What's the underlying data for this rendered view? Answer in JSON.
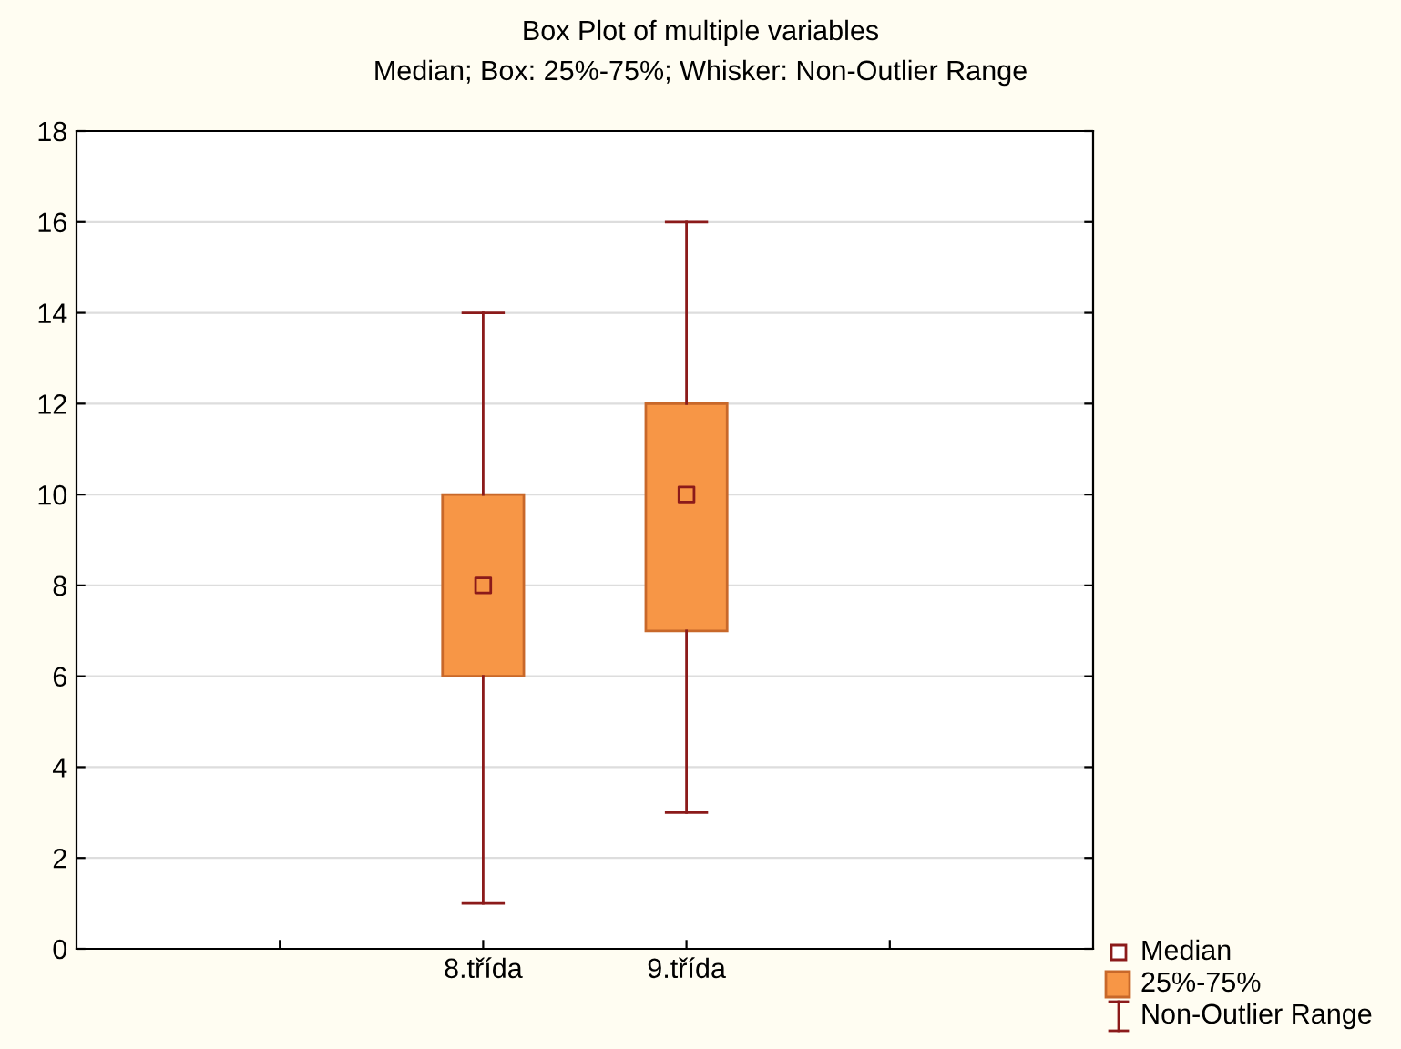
{
  "chart_data": {
    "type": "box",
    "title": "Box Plot of multiple variables",
    "subtitle": "Median; Box: 25%-75%; Whisker: Non-Outlier Range",
    "categories": [
      null,
      "8.třída",
      "9.třída",
      null
    ],
    "boxes": [
      null,
      {
        "low": 1,
        "q1": 6,
        "median": 8,
        "q3": 10,
        "high": 14
      },
      {
        "low": 3,
        "q1": 7,
        "median": 10,
        "q3": 12,
        "high": 16
      },
      null
    ],
    "color": "#f79646",
    "ylim": [
      0,
      18
    ],
    "yticks": [
      0,
      2,
      4,
      6,
      8,
      10,
      12,
      14,
      16,
      18
    ],
    "grid": "y",
    "marker": "square",
    "annotations": [
      "Median",
      "25%-75%",
      "Non-Outlier Range"
    ]
  }
}
